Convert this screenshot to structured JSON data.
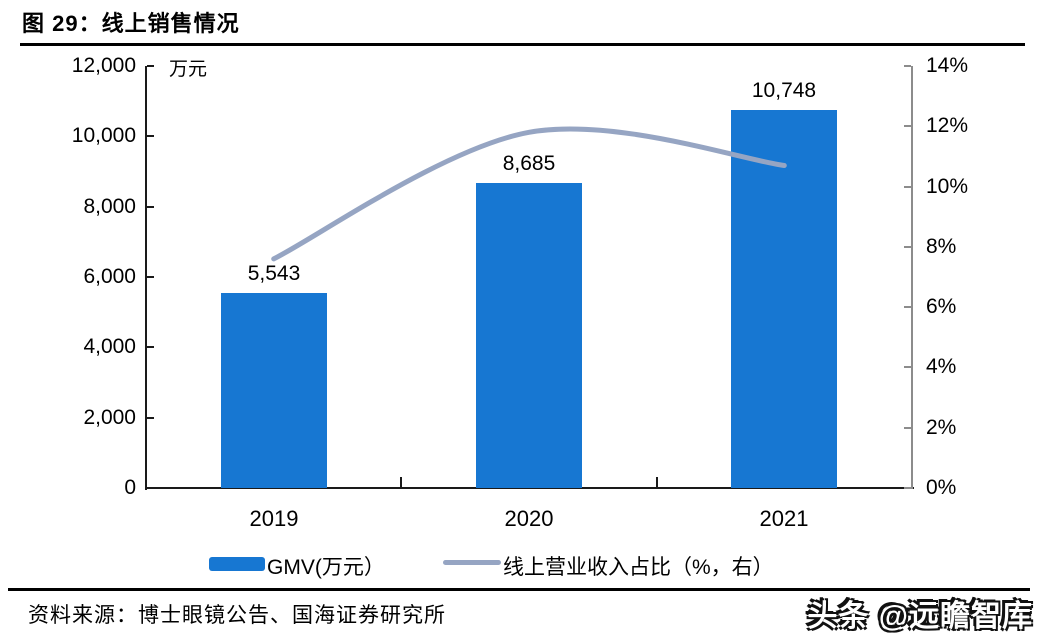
{
  "header": {
    "title": "图 29：线上销售情况"
  },
  "chart_data": {
    "type": "bar+line",
    "categories": [
      "2019",
      "2020",
      "2021"
    ],
    "series": [
      {
        "name": "GMV(万元）",
        "type": "bar",
        "axis": "left",
        "values": [
          5543,
          8685,
          10748
        ],
        "value_labels": [
          "5,543",
          "8,685",
          "10,748"
        ],
        "color": "#1777D2"
      },
      {
        "name": "线上营业收入占比（%，右）",
        "type": "line",
        "axis": "right",
        "values": [
          7.6,
          11.8,
          10.7
        ],
        "color": "#96A5C3",
        "smooth": true
      }
    ],
    "left_axis": {
      "min": 0,
      "max": 12000,
      "step": 2000,
      "unit": "万元",
      "tick_labels": [
        "0",
        "2,000",
        "4,000",
        "6,000",
        "8,000",
        "10,000",
        "12,000"
      ]
    },
    "right_axis": {
      "min": 0,
      "max": 14,
      "step": 2,
      "tick_labels": [
        "0%",
        "2%",
        "4%",
        "6%",
        "8%",
        "10%",
        "12%",
        "14%"
      ]
    },
    "grid": false,
    "legend_position": "bottom"
  },
  "colors": {
    "bar": "#1777D2",
    "line": "#96A5C3",
    "axis_dark": "#1A1A1A",
    "axis_gray": "#8C8C8C"
  },
  "footer": {
    "source": "资料来源：博士眼镜公告、国海证券研究所",
    "watermark": "头条 @远瞻智库"
  }
}
